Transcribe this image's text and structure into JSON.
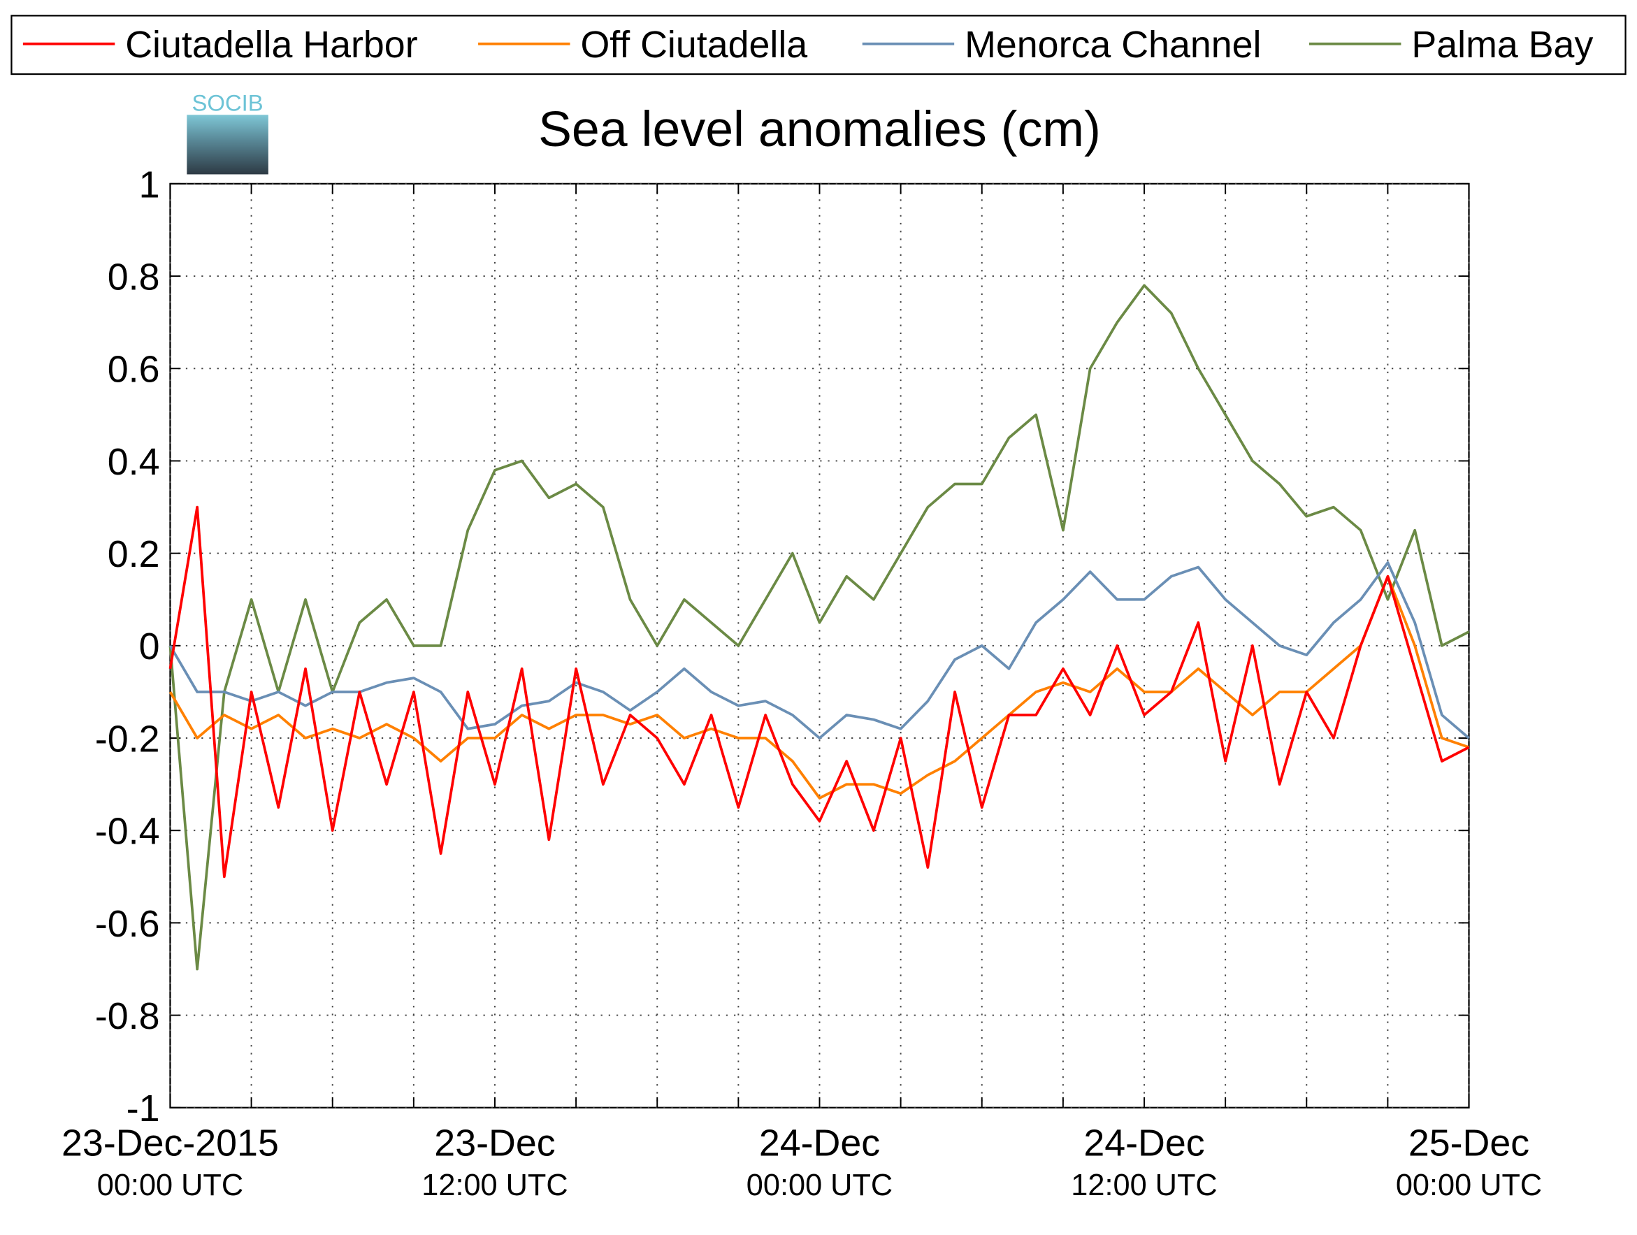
{
  "chart_data": {
    "type": "line",
    "title": "Sea level anomalies (cm)",
    "logo_text": "SOCIB",
    "x": [
      0,
      1,
      2,
      3,
      4,
      5,
      6,
      7,
      8,
      9,
      10,
      11,
      12,
      13,
      14,
      15,
      16,
      17,
      18,
      19,
      20,
      21,
      22,
      23,
      24,
      25,
      26,
      27,
      28,
      29,
      30,
      31,
      32,
      33,
      34,
      35,
      36,
      37,
      38,
      39,
      40,
      41,
      42,
      43,
      44,
      45,
      46,
      47,
      48
    ],
    "xlim": [
      0,
      48
    ],
    "xticks": [
      0,
      3,
      6,
      9,
      12,
      15,
      18,
      21,
      24,
      27,
      30,
      33,
      36,
      39,
      42,
      45,
      48
    ],
    "xtick_labels": [
      {
        "value": 0,
        "label": "23-Dec-2015",
        "sublabel": "00:00 UTC"
      },
      {
        "value": 12,
        "label": "23-Dec",
        "sublabel": "12:00 UTC"
      },
      {
        "value": 24,
        "label": "24-Dec",
        "sublabel": "00:00 UTC"
      },
      {
        "value": 36,
        "label": "24-Dec",
        "sublabel": "12:00 UTC"
      },
      {
        "value": 48,
        "label": "25-Dec",
        "sublabel": "00:00 UTC"
      }
    ],
    "ylim": [
      -1,
      1
    ],
    "yticks": [
      -1,
      -0.8,
      -0.6,
      -0.4,
      -0.2,
      0,
      0.2,
      0.4,
      0.6,
      0.8,
      1
    ],
    "grid": true,
    "legend": "top",
    "series": [
      {
        "name": "Ciutadella Harbor",
        "color": "#ff0000",
        "values": [
          -0.05,
          0.3,
          -0.5,
          -0.1,
          -0.35,
          -0.05,
          -0.4,
          -0.1,
          -0.3,
          -0.1,
          -0.45,
          -0.1,
          -0.3,
          -0.05,
          -0.42,
          -0.05,
          -0.3,
          -0.15,
          -0.2,
          -0.3,
          -0.15,
          -0.35,
          -0.15,
          -0.3,
          -0.38,
          -0.25,
          -0.4,
          -0.2,
          -0.48,
          -0.1,
          -0.35,
          -0.15,
          -0.15,
          -0.05,
          -0.15,
          0.0,
          -0.15,
          -0.1,
          0.05,
          -0.25,
          0.0,
          -0.3,
          -0.1,
          -0.2,
          0.0,
          0.15,
          -0.05,
          -0.25,
          -0.22
        ]
      },
      {
        "name": "Off Ciutadella",
        "color": "#ff8000",
        "values": [
          -0.1,
          -0.2,
          -0.15,
          -0.18,
          -0.15,
          -0.2,
          -0.18,
          -0.2,
          -0.17,
          -0.2,
          -0.25,
          -0.2,
          -0.2,
          -0.15,
          -0.18,
          -0.15,
          -0.15,
          -0.17,
          -0.15,
          -0.2,
          -0.18,
          -0.2,
          -0.2,
          -0.25,
          -0.33,
          -0.3,
          -0.3,
          -0.32,
          -0.28,
          -0.25,
          -0.2,
          -0.15,
          -0.1,
          -0.08,
          -0.1,
          -0.05,
          -0.1,
          -0.1,
          -0.05,
          -0.1,
          -0.15,
          -0.1,
          -0.1,
          -0.05,
          0.0,
          0.15,
          0.0,
          -0.2,
          -0.22
        ]
      },
      {
        "name": "Menorca Channel",
        "color": "#6a8fb5",
        "values": [
          0,
          -0.1,
          -0.1,
          -0.12,
          -0.1,
          -0.13,
          -0.1,
          -0.1,
          -0.08,
          -0.07,
          -0.1,
          -0.18,
          -0.17,
          -0.13,
          -0.12,
          -0.08,
          -0.1,
          -0.14,
          -0.1,
          -0.05,
          -0.1,
          -0.13,
          -0.12,
          -0.15,
          -0.2,
          -0.15,
          -0.16,
          -0.18,
          -0.12,
          -0.03,
          0.0,
          -0.05,
          0.05,
          0.1,
          0.16,
          0.1,
          0.1,
          0.15,
          0.17,
          0.1,
          0.05,
          0.0,
          -0.02,
          0.05,
          0.1,
          0.18,
          0.05,
          -0.15,
          -0.2
        ]
      },
      {
        "name": "Palma Bay",
        "color": "#6b8a45",
        "values": [
          0,
          -0.7,
          -0.1,
          0.1,
          -0.1,
          0.1,
          -0.1,
          0.05,
          0.1,
          0.0,
          0.0,
          0.25,
          0.38,
          0.4,
          0.32,
          0.35,
          0.3,
          0.1,
          0.0,
          0.1,
          0.05,
          0.0,
          0.1,
          0.2,
          0.05,
          0.15,
          0.1,
          0.2,
          0.3,
          0.35,
          0.35,
          0.45,
          0.5,
          0.25,
          0.6,
          0.7,
          0.78,
          0.72,
          0.6,
          0.5,
          0.4,
          0.35,
          0.28,
          0.3,
          0.25,
          0.1,
          0.25,
          0.0,
          0.03
        ]
      }
    ]
  }
}
